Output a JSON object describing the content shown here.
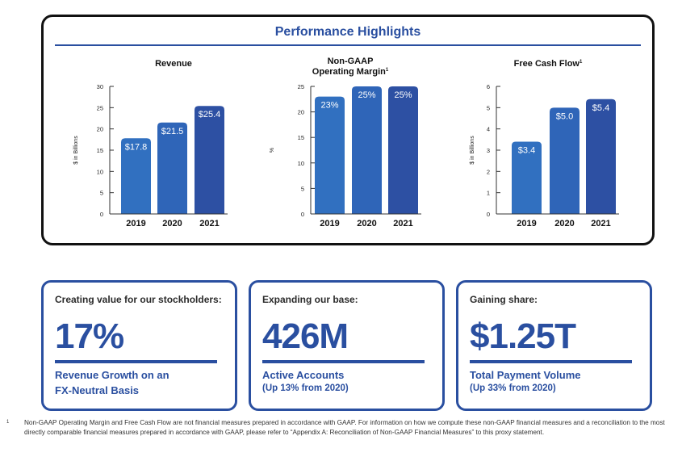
{
  "section_title": "Performance Highlights",
  "chart_data": [
    {
      "type": "bar",
      "title": "Revenue",
      "title_line2": "",
      "title_sup": "",
      "ylabel": "$ in Billions",
      "categories": [
        "2019",
        "2020",
        "2021"
      ],
      "values": [
        17.8,
        21.5,
        25.4
      ],
      "data_labels": [
        "$17.8",
        "$21.5",
        "$25.4"
      ],
      "ylim": [
        0,
        30
      ],
      "yticks": [
        0,
        5,
        10,
        15,
        20,
        25,
        30
      ],
      "colors": [
        "#3170c0",
        "#2f65b8",
        "#2d50a3"
      ]
    },
    {
      "type": "bar",
      "title": "Non-GAAP",
      "title_line2": "Operating Margin",
      "title_sup": "1",
      "ylabel": "%",
      "categories": [
        "2019",
        "2020",
        "2021"
      ],
      "values": [
        23,
        25,
        25
      ],
      "data_labels": [
        "23%",
        "25%",
        "25%"
      ],
      "ylim": [
        0,
        25
      ],
      "yticks": [
        0,
        5,
        10,
        15,
        20,
        25
      ],
      "colors": [
        "#3170c0",
        "#2f65b8",
        "#2d50a3"
      ]
    },
    {
      "type": "bar",
      "title": "Free Cash Flow",
      "title_line2": "",
      "title_sup": "1",
      "ylabel": "$ in Billions",
      "categories": [
        "2019",
        "2020",
        "2021"
      ],
      "values": [
        3.4,
        5.0,
        5.4
      ],
      "data_labels": [
        "$3.4",
        "$5.0",
        "$5.4"
      ],
      "ylim": [
        0,
        6
      ],
      "yticks": [
        0,
        1,
        2,
        3,
        4,
        5,
        6
      ],
      "colors": [
        "#3170c0",
        "#2f65b8",
        "#2d50a3"
      ]
    }
  ],
  "cards": [
    {
      "heading": "Creating value for our stockholders:",
      "big": "17%",
      "sub_line1": "Revenue Growth on an",
      "sub_line2": "FX-Neutral Basis"
    },
    {
      "heading": "Expanding our base:",
      "big": "426M",
      "sub_line1": "Active Accounts",
      "sub_line2": "(Up 13% from 2020)"
    },
    {
      "heading": "Gaining share:",
      "big": "$1.25T",
      "sub_line1": "Total Payment Volume",
      "sub_line2": "(Up 33% from 2020)"
    }
  ],
  "footnote": {
    "mark": "1",
    "text": "Non-GAAP Operating Margin and Free Cash Flow are not financial measures prepared in accordance with GAAP. For information on how we compute these non-GAAP financial measures and a reconciliation to the most directly comparable financial measures prepared in accordance with GAAP, please refer to “Appendix A: Reconciliation of Non-GAAP Financial Measures” to this proxy statement."
  }
}
